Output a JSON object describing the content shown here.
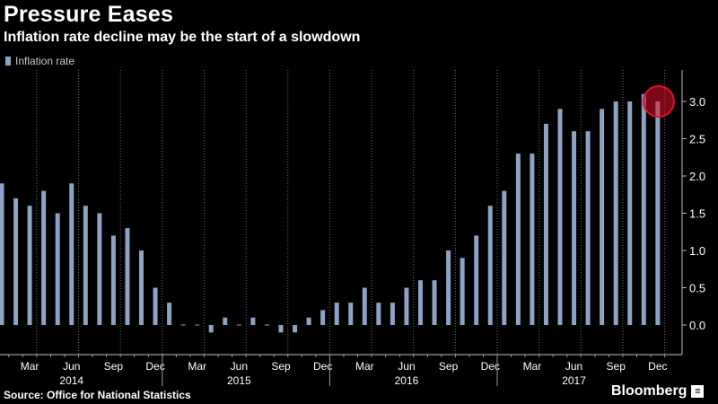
{
  "header": {
    "title": "Pressure Eases",
    "subtitle": "Inflation rate decline may be the start of a slowdown"
  },
  "footer": {
    "source": "Source: Office for National Statistics",
    "brand": "Bloomberg"
  },
  "chart_data": {
    "type": "bar",
    "series": [
      {
        "name": "Inflation rate",
        "color": "#8ea2c4",
        "values": [
          1.9,
          1.7,
          1.6,
          1.8,
          1.5,
          1.9,
          1.6,
          1.5,
          1.2,
          1.3,
          1.0,
          0.5,
          0.3,
          0.0,
          0.0,
          -0.1,
          0.1,
          0.0,
          0.1,
          0.0,
          -0.1,
          -0.1,
          0.1,
          0.2,
          0.3,
          0.3,
          0.5,
          0.3,
          0.3,
          0.5,
          0.6,
          0.6,
          1.0,
          0.9,
          1.2,
          1.6,
          1.8,
          2.3,
          2.3,
          2.7,
          2.9,
          2.6,
          2.6,
          2.9,
          3.0,
          3.0,
          3.1,
          3.0
        ]
      }
    ],
    "x_month_labels": [
      "Mar",
      "Jun",
      "Sep",
      "Dec",
      "Mar",
      "Jun",
      "Sep",
      "Dec",
      "Mar",
      "Jun",
      "Sep",
      "Dec",
      "Mar",
      "Jun",
      "Sep",
      "Dec"
    ],
    "x_month_label_index": [
      2,
      5,
      8,
      11,
      14,
      17,
      20,
      23,
      26,
      29,
      32,
      35,
      38,
      41,
      44,
      47
    ],
    "x_year_labels": [
      "2014",
      "2015",
      "2016",
      "2017"
    ],
    "x_year_label_index": [
      5,
      17,
      29,
      41
    ],
    "ylim": [
      -0.3,
      3.35
    ],
    "yticks": [
      0.0,
      0.5,
      1.0,
      1.5,
      2.0,
      2.5,
      3.0
    ],
    "ytick_labels": [
      "0.0",
      "0.5",
      "1.0",
      "1.5",
      "2.0",
      "2.5",
      "3.0"
    ],
    "ylabel": "",
    "xlabel": "",
    "grid": "vertical dotted",
    "legend_position": "top-left",
    "highlight": {
      "index": 47,
      "color": "#e0102a"
    }
  }
}
